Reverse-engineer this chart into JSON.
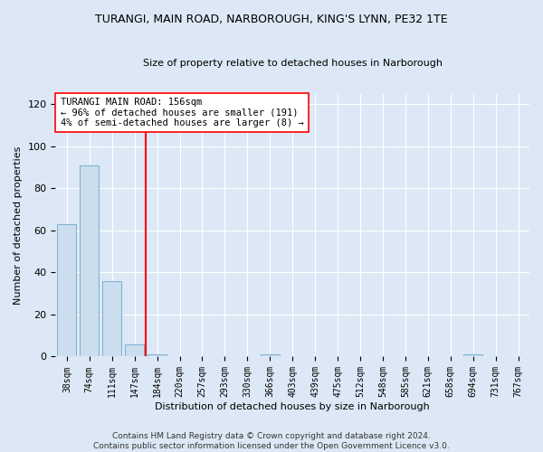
{
  "title": "TURANGI, MAIN ROAD, NARBOROUGH, KING'S LYNN, PE32 1TE",
  "subtitle": "Size of property relative to detached houses in Narborough",
  "xlabel": "Distribution of detached houses by size in Narborough",
  "ylabel": "Number of detached properties",
  "bar_color": "#ccdded",
  "bar_edge_color": "#7aafd4",
  "background_color": "#dce8f5",
  "grid_color": "#ffffff",
  "categories": [
    "38sqm",
    "74sqm",
    "111sqm",
    "147sqm",
    "184sqm",
    "220sqm",
    "257sqm",
    "293sqm",
    "330sqm",
    "366sqm",
    "403sqm",
    "439sqm",
    "475sqm",
    "512sqm",
    "548sqm",
    "585sqm",
    "621sqm",
    "658sqm",
    "694sqm",
    "731sqm",
    "767sqm"
  ],
  "values": [
    63,
    91,
    36,
    6,
    1,
    0,
    0,
    0,
    0,
    1,
    0,
    0,
    0,
    0,
    0,
    0,
    0,
    0,
    1,
    0,
    0
  ],
  "ylim": [
    0,
    125
  ],
  "yticks": [
    0,
    20,
    40,
    60,
    80,
    100,
    120
  ],
  "red_line_x": 3.5,
  "annotation_text": "TURANGI MAIN ROAD: 156sqm\n← 96% of detached houses are smaller (191)\n4% of semi-detached houses are larger (8) →",
  "footer_text": "Contains HM Land Registry data © Crown copyright and database right 2024.\nContains public sector information licensed under the Open Government Licence v3.0.",
  "bar_width": 0.85
}
